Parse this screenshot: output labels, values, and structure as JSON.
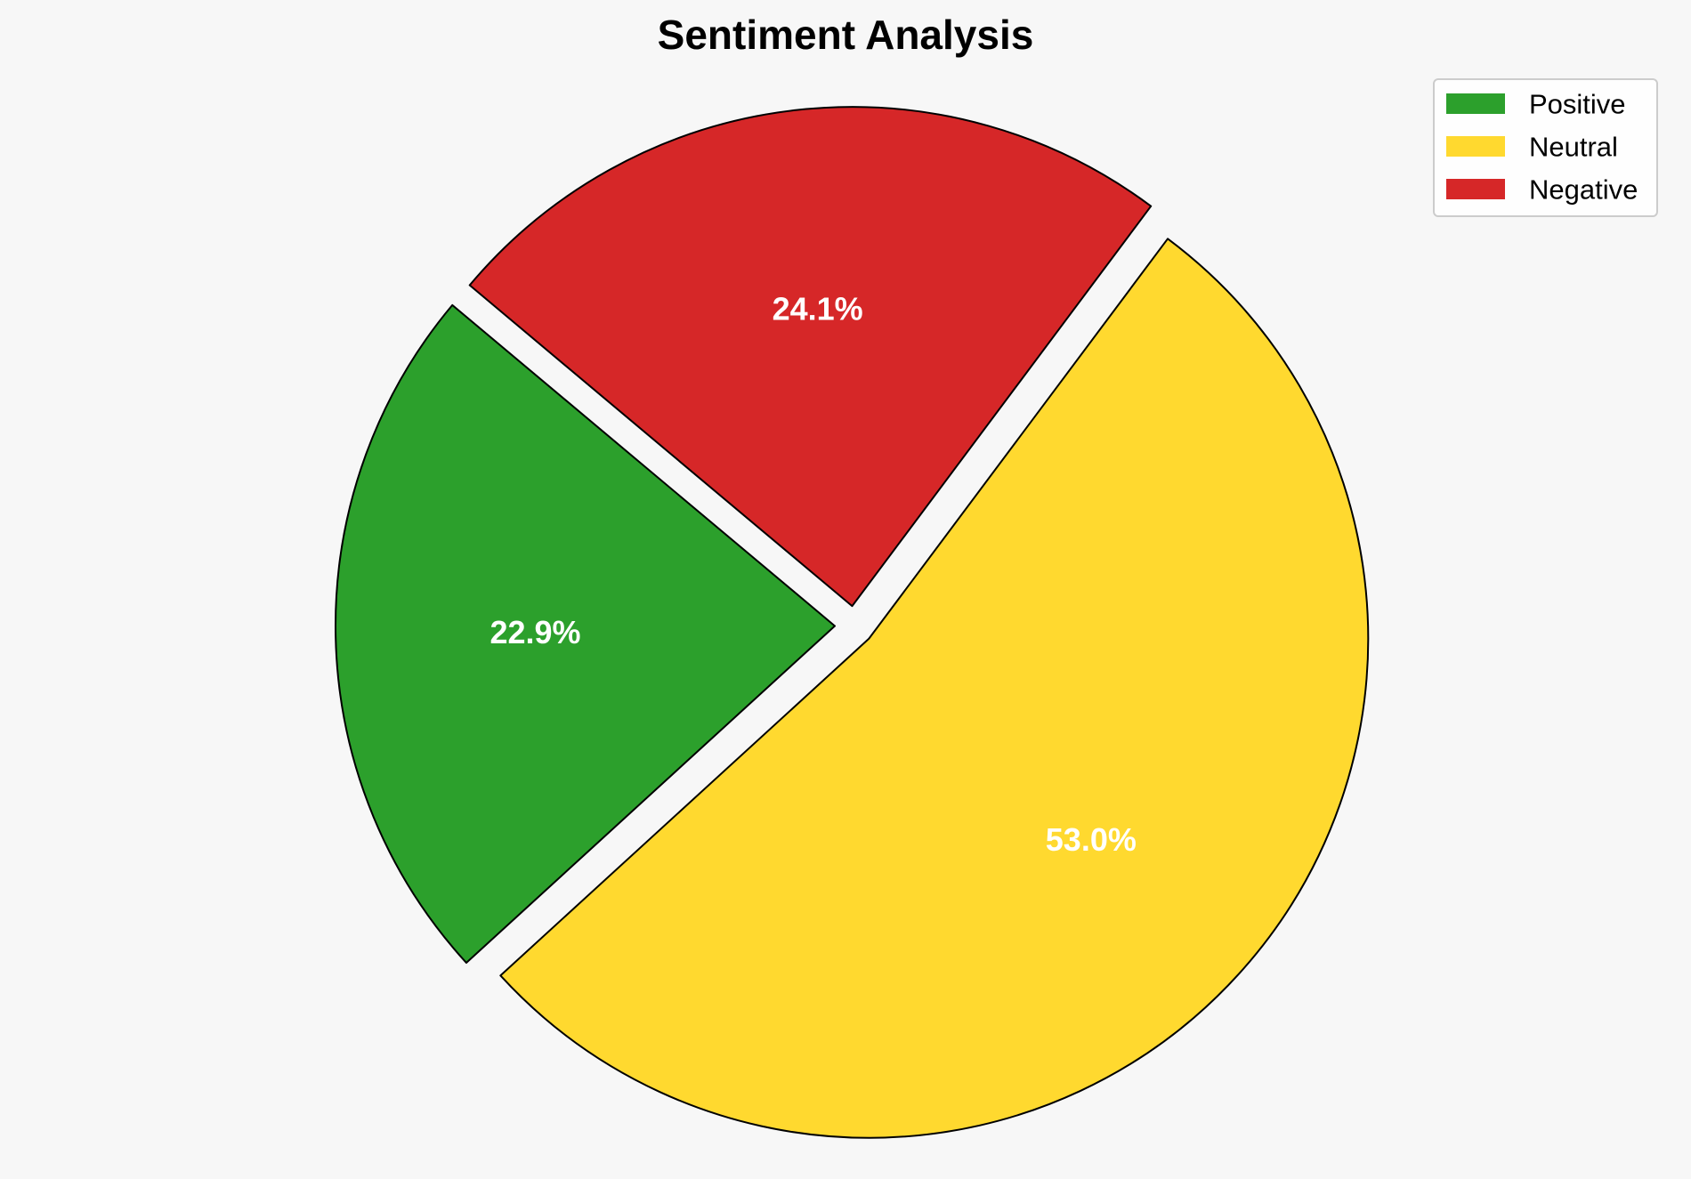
{
  "chart_data": {
    "type": "pie",
    "title": "Sentiment Analysis",
    "categories": [
      "Positive",
      "Neutral",
      "Negative"
    ],
    "values": [
      22.9,
      53.0,
      24.1
    ],
    "labels": [
      "22.9%",
      "53.0%",
      "24.1%"
    ],
    "colors": [
      "#2ca02c",
      "#ffd92f",
      "#d62728"
    ],
    "edge_color": "#000000",
    "label_color": "#ffffff",
    "exploded": true,
    "legend": {
      "position": "top-right",
      "entries": [
        "Positive",
        "Neutral",
        "Negative"
      ]
    }
  }
}
